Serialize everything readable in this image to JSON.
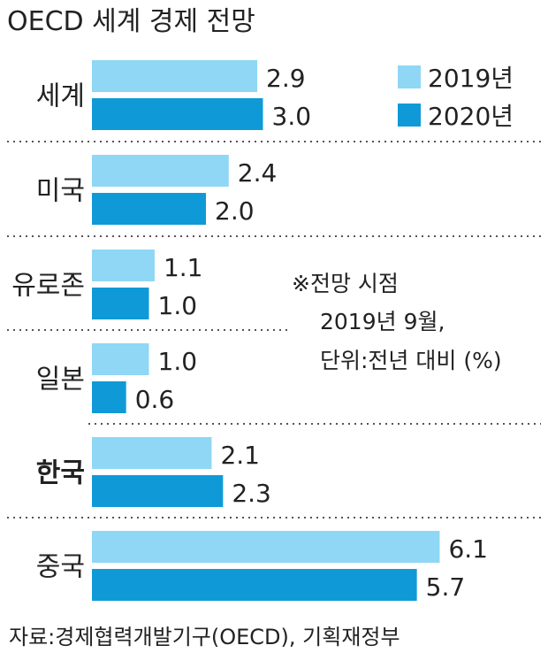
{
  "chart_data": {
    "type": "bar",
    "orientation": "horizontal",
    "title": "OECD 세계 경제 전망",
    "categories": [
      "세계",
      "미국",
      "유로존",
      "일본",
      "한국",
      "중국"
    ],
    "highlight_category": "한국",
    "series": [
      {
        "name": "2019년",
        "color": "#8fd7f4",
        "values": [
          2.9,
          2.4,
          1.1,
          1.0,
          2.1,
          6.1
        ]
      },
      {
        "name": "2020년",
        "color": "#0f9ad7",
        "values": [
          3.0,
          2.0,
          1.0,
          0.6,
          2.3,
          5.7
        ]
      }
    ],
    "value_labels": [
      [
        "2.9",
        "2.4",
        "1.1",
        "1.0",
        "2.1",
        "6.1"
      ],
      [
        "3.0",
        "2.0",
        "1.0",
        "0.6",
        "2.3",
        "5.7"
      ]
    ],
    "xlim": [
      0,
      6.5
    ],
    "legend_position": "top-right",
    "grid": false,
    "note_lines": [
      "※전망 시점",
      "2019년 9월,",
      "단위:전년 대비 (%)"
    ],
    "source": "자료:경제협력개발기구(OECD), 기획재정부"
  }
}
